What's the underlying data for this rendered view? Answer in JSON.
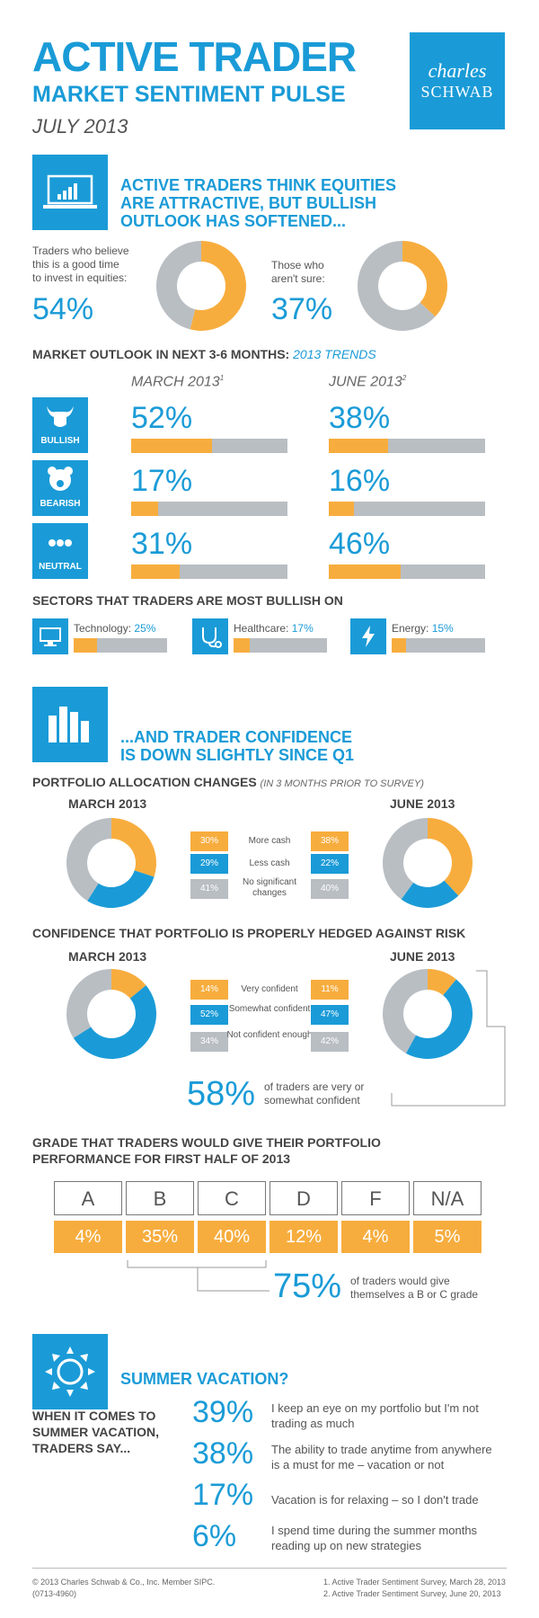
{
  "header": {
    "title": "ACTIVE TRADER",
    "subtitle": "MARKET SENTIMENT PULSE",
    "date": "JULY 2013",
    "logo_line1": "charles",
    "logo_line2": "SCHWAB"
  },
  "section1": {
    "headline_1": "ACTIVE TRADERS THINK EQUITIES",
    "headline_2": "ARE ATTRACTIVE, BUT BULLISH",
    "headline_3": "OUTLOOK HAS SOFTENED...",
    "good_time_label_1": "Traders who believe",
    "good_time_label_2": "this is a good time",
    "good_time_label_3": "to invest in equities:",
    "good_time_pct": "54%",
    "not_sure_label_1": "Those who",
    "not_sure_label_2": "aren't sure:",
    "not_sure_pct": "37%"
  },
  "outlook": {
    "heading": "MARKET OUTLOOK IN NEXT 3-6 MONTHS:",
    "heading_accent": "2013 TRENDS",
    "col1": "MARCH 2013",
    "col1_sup": "1",
    "col2": "JUNE 2013",
    "col2_sup": "2",
    "rows": [
      {
        "label": "BULLISH",
        "march": "52%",
        "june": "38%"
      },
      {
        "label": "BEARISH",
        "march": "17%",
        "june": "16%"
      },
      {
        "label": "NEUTRAL",
        "march": "31%",
        "june": "46%"
      }
    ]
  },
  "sectors": {
    "heading": "SECTORS THAT TRADERS ARE MOST BULLISH ON",
    "items": [
      {
        "name": "Technology:",
        "pct": "25%"
      },
      {
        "name": "Healthcare:",
        "pct": "17%"
      },
      {
        "name": "Energy:",
        "pct": "15%"
      }
    ]
  },
  "section2": {
    "headline_1": "...AND TRADER CONFIDENCE",
    "headline_2": "IS DOWN SLIGHTLY SINCE Q1",
    "alloc_heading": "PORTFOLIO ALLOCATION CHANGES",
    "alloc_note": "(IN 3 MONTHS PRIOR TO SURVEY)",
    "march": "MARCH 2013",
    "june": "JUNE 2013",
    "hedge_heading": "CONFIDENCE THAT PORTFOLIO IS PROPERLY HEDGED AGAINST RISK",
    "confident_pct": "58%",
    "confident_text_1": "of traders are very or",
    "confident_text_2": "somewhat confident"
  },
  "grades": {
    "heading_1": "GRADE THAT TRADERS WOULD GIVE THEIR PORTFOLIO",
    "heading_2": "PERFORMANCE FOR FIRST HALF OF 2013",
    "summary_pct": "75%",
    "summary_text_1": "of traders would give",
    "summary_text_2": "themselves a B or C grade"
  },
  "vacation": {
    "headline": "SUMMER VACATION?",
    "lead_1": "WHEN IT COMES TO",
    "lead_2": "SUMMER VACATION,",
    "lead_3": "TRADERS SAY...",
    "items": [
      {
        "pct": "39%",
        "text_1": "I keep an eye on my portfolio but I'm not",
        "text_2": "trading as much"
      },
      {
        "pct": "38%",
        "text_1": "The ability to trade anytime from anywhere",
        "text_2": "is a must for me – vacation or not"
      },
      {
        "pct": "17%",
        "text_1": "Vacation is for relaxing – so I don't trade",
        "text_2": ""
      },
      {
        "pct": "6%",
        "text_1": "I spend time during the summer months",
        "text_2": "reading up on new strategies"
      }
    ]
  },
  "footer": {
    "left_1": "© 2013 Charles Schwab & Co., Inc. Member SIPC.",
    "left_2": "(0713-4960)",
    "right_1": "1. Active Trader Sentiment Survey, March 28, 2013",
    "right_2": "2. Active Trader Sentiment Survey, June 20, 2013"
  },
  "colors": {
    "blue": "#1a9bd7",
    "orange": "#f7ad3e",
    "gray": "#b9bec3"
  },
  "chart_data": [
    {
      "type": "pie",
      "categories": [
        "good time",
        "other"
      ],
      "values": [
        54,
        46
      ]
    },
    {
      "type": "pie",
      "categories": [
        "not sure",
        "other"
      ],
      "values": [
        37,
        63
      ]
    },
    {
      "type": "bar",
      "categories": [
        "BULLISH",
        "BEARISH",
        "NEUTRAL"
      ],
      "series": [
        {
          "name": "MARCH 2013",
          "values": [
            52,
            17,
            31
          ]
        },
        {
          "name": "JUNE 2013",
          "values": [
            38,
            16,
            46
          ]
        }
      ],
      "ylim": [
        0,
        100
      ]
    },
    {
      "type": "bar",
      "categories": [
        "Technology",
        "Healthcare",
        "Energy"
      ],
      "values": [
        25,
        17,
        15
      ],
      "ylim": [
        0,
        100
      ]
    },
    {
      "type": "pie",
      "name": "MARCH 2013",
      "categories": [
        "More cash",
        "Less cash",
        "No significant changes"
      ],
      "labels": [
        "30%",
        "29%",
        "41%"
      ],
      "values": [
        30,
        29,
        41
      ]
    },
    {
      "type": "pie",
      "name": "JUNE 2013",
      "categories": [
        "More cash",
        "Less cash",
        "No significant changes"
      ],
      "labels": [
        "38%",
        "22%",
        "40%"
      ],
      "values": [
        38,
        22,
        40
      ]
    },
    {
      "type": "pie",
      "name": "MARCH 2013",
      "categories": [
        "Very confident",
        "Somewhat confident",
        "Not confident enough"
      ],
      "labels": [
        "14%",
        "52%",
        "34%"
      ],
      "values": [
        14,
        52,
        34
      ]
    },
    {
      "type": "pie",
      "name": "JUNE 2013",
      "categories": [
        "Very confident",
        "Somewhat confident",
        "Not confident enough"
      ],
      "labels": [
        "11%",
        "47%",
        "42%"
      ],
      "values": [
        11,
        47,
        42
      ]
    },
    {
      "type": "table",
      "categories": [
        "A",
        "B",
        "C",
        "D",
        "F",
        "N/A"
      ],
      "labels": [
        "4%",
        "35%",
        "40%",
        "12%",
        "4%",
        "5%"
      ],
      "values": [
        4,
        35,
        40,
        12,
        4,
        5
      ]
    }
  ]
}
